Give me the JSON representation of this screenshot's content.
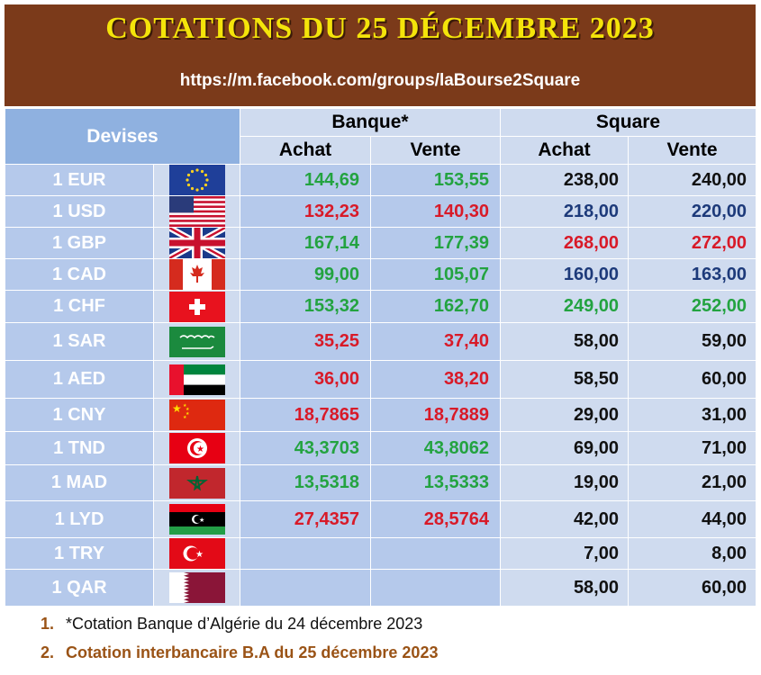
{
  "header": {
    "title": "COTATIONS DU 25 DÉCEMBRE 2023",
    "url": "https://m.facebook.com/groups/laBourse2Square"
  },
  "table": {
    "col_devises": "Devises",
    "group_banque": "Banque*",
    "group_square": "Square",
    "achat": "Achat",
    "vente": "Vente",
    "rows": [
      {
        "currency": "1 EUR",
        "flag": "eu-flag-icon",
        "banque_achat": "144,69",
        "banque_vente": "153,55",
        "banque_color": "green",
        "square_achat": "238,00",
        "square_vente": "240,00",
        "square_color": "black"
      },
      {
        "currency": "1 USD",
        "flag": "us-flag-icon",
        "banque_achat": "132,23",
        "banque_vente": "140,30",
        "banque_color": "red",
        "square_achat": "218,00",
        "square_vente": "220,00",
        "square_color": "navy"
      },
      {
        "currency": "1 GBP",
        "flag": "uk-flag-icon",
        "banque_achat": "167,14",
        "banque_vente": "177,39",
        "banque_color": "green",
        "square_achat": "268,00",
        "square_vente": "272,00",
        "square_color": "red"
      },
      {
        "currency": "1 CAD",
        "flag": "canada-flag-icon",
        "banque_achat": "99,00",
        "banque_vente": "105,07",
        "banque_color": "green",
        "square_achat": "160,00",
        "square_vente": "163,00",
        "square_color": "navy"
      },
      {
        "currency": "1 CHF",
        "flag": "switzerland-flag-icon",
        "banque_achat": "153,32",
        "banque_vente": "162,70",
        "banque_color": "green",
        "square_achat": "249,00",
        "square_vente": "252,00",
        "square_color": "green"
      },
      {
        "currency": "1 SAR",
        "flag": "saudi-flag-icon",
        "banque_achat": "35,25",
        "banque_vente": "37,40",
        "banque_color": "red",
        "square_achat": "58,00",
        "square_vente": "59,00",
        "square_color": "black"
      },
      {
        "currency": "1 AED",
        "flag": "uae-flag-icon",
        "banque_achat": "36,00",
        "banque_vente": "38,20",
        "banque_color": "red",
        "square_achat": "58,50",
        "square_vente": "60,00",
        "square_color": "black"
      },
      {
        "currency": "1 CNY",
        "flag": "china-flag-icon",
        "banque_achat": "18,7865",
        "banque_vente": "18,7889",
        "banque_color": "red",
        "square_achat": "29,00",
        "square_vente": "31,00",
        "square_color": "black"
      },
      {
        "currency": "1 TND",
        "flag": "tunisia-flag-icon",
        "banque_achat": "43,3703",
        "banque_vente": "43,8062",
        "banque_color": "green",
        "square_achat": "69,00",
        "square_vente": "71,00",
        "square_color": "black"
      },
      {
        "currency": "1 MAD",
        "flag": "morocco-flag-icon",
        "banque_achat": "13,5318",
        "banque_vente": "13,5333",
        "banque_color": "green",
        "square_achat": "19,00",
        "square_vente": "21,00",
        "square_color": "black"
      },
      {
        "currency": "1 LYD",
        "flag": "libya-flag-icon",
        "banque_achat": "27,4357",
        "banque_vente": "28,5764",
        "banque_color": "red",
        "square_achat": "42,00",
        "square_vente": "44,00",
        "square_color": "black"
      },
      {
        "currency": "1 TRY",
        "flag": "turkey-flag-icon",
        "banque_achat": "",
        "banque_vente": "",
        "banque_color": "black",
        "square_achat": "7,00",
        "square_vente": "8,00",
        "square_color": "black"
      },
      {
        "currency": "1 QAR",
        "flag": "qatar-flag-icon",
        "banque_achat": "",
        "banque_vente": "",
        "banque_color": "black",
        "square_achat": "58,00",
        "square_vente": "60,00",
        "square_color": "black"
      }
    ]
  },
  "notes": [
    {
      "num": "1.",
      "text": "*Cotation Banque d’Algérie du 24 décembre 2023"
    },
    {
      "num": "2.",
      "text": "Cotation interbancaire B.A du 25 décembre 2023"
    }
  ],
  "colors": {
    "header_bg": "#7b3a1a",
    "title": "#f4e40a",
    "green": "#23a340",
    "red": "#d81a28",
    "navy": "#1d3a7a"
  }
}
